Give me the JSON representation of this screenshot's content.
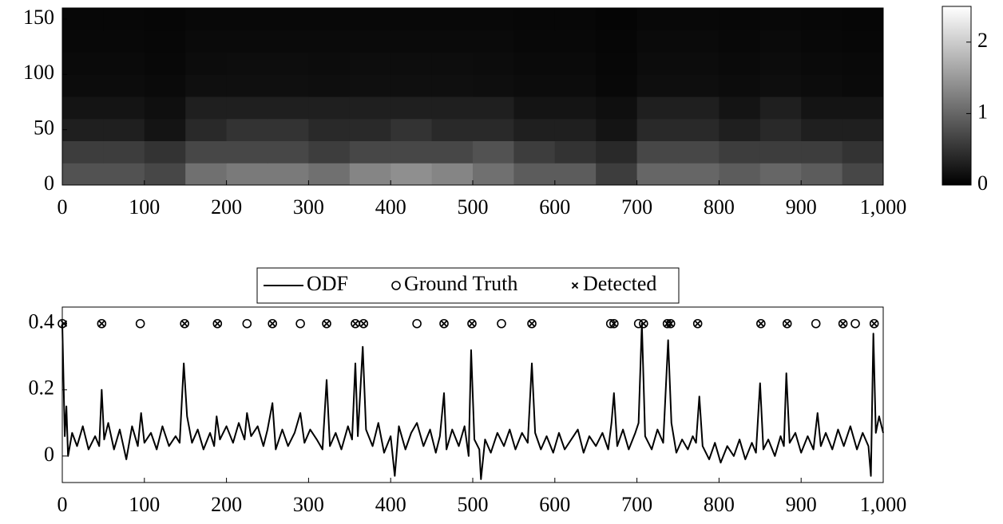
{
  "chart_data": [
    {
      "type": "heatmap",
      "xbins": [
        0,
        50,
        100,
        150,
        200,
        250,
        300,
        350,
        400,
        450,
        500,
        550,
        600,
        650,
        700,
        750,
        800,
        850,
        900,
        950,
        1000
      ],
      "ybins": [
        0,
        20,
        40,
        60,
        80,
        100,
        120,
        140,
        160
      ],
      "values": [
        [
          0.8,
          0.8,
          0.7,
          1.1,
          1.2,
          1.2,
          1.1,
          1.3,
          1.4,
          1.3,
          1.1,
          0.9,
          0.9,
          0.6,
          1.0,
          1.0,
          0.9,
          1.0,
          0.9,
          0.7
        ],
        [
          0.6,
          0.6,
          0.5,
          0.7,
          0.7,
          0.7,
          0.6,
          0.7,
          0.7,
          0.7,
          0.8,
          0.6,
          0.5,
          0.4,
          0.7,
          0.7,
          0.6,
          0.6,
          0.6,
          0.5
        ],
        [
          0.3,
          0.3,
          0.2,
          0.4,
          0.5,
          0.5,
          0.4,
          0.4,
          0.5,
          0.4,
          0.4,
          0.3,
          0.3,
          0.2,
          0.4,
          0.4,
          0.3,
          0.4,
          0.3,
          0.3
        ],
        [
          0.2,
          0.2,
          0.15,
          0.3,
          0.3,
          0.3,
          0.3,
          0.3,
          0.3,
          0.3,
          0.3,
          0.2,
          0.2,
          0.15,
          0.3,
          0.3,
          0.2,
          0.3,
          0.2,
          0.2
        ],
        [
          0.12,
          0.12,
          0.1,
          0.15,
          0.15,
          0.15,
          0.14,
          0.15,
          0.15,
          0.15,
          0.14,
          0.12,
          0.12,
          0.08,
          0.14,
          0.14,
          0.12,
          0.14,
          0.12,
          0.1
        ],
        [
          0.1,
          0.1,
          0.08,
          0.12,
          0.13,
          0.13,
          0.12,
          0.13,
          0.13,
          0.13,
          0.12,
          0.1,
          0.1,
          0.07,
          0.12,
          0.12,
          0.1,
          0.12,
          0.1,
          0.09
        ],
        [
          0.08,
          0.08,
          0.07,
          0.1,
          0.1,
          0.1,
          0.1,
          0.1,
          0.1,
          0.1,
          0.1,
          0.08,
          0.08,
          0.06,
          0.1,
          0.1,
          0.08,
          0.1,
          0.08,
          0.07
        ],
        [
          0.07,
          0.07,
          0.06,
          0.08,
          0.08,
          0.08,
          0.08,
          0.08,
          0.08,
          0.08,
          0.08,
          0.07,
          0.07,
          0.05,
          0.08,
          0.08,
          0.07,
          0.08,
          0.07,
          0.06
        ]
      ],
      "colormap": [
        "#000000",
        "#ffffff"
      ],
      "xlim": [
        0,
        1000
      ],
      "ylim": [
        0,
        160
      ],
      "clim": [
        0,
        2.5
      ],
      "xticks": [
        0,
        100,
        200,
        300,
        400,
        500,
        600,
        700,
        800,
        900,
        {
          "value": 1000,
          "label": "1,000"
        }
      ],
      "yticks": [
        0,
        50,
        100,
        150
      ],
      "cticks": [
        0,
        1,
        2
      ]
    },
    {
      "type": "line",
      "xlim": [
        0,
        1000
      ],
      "ylim": [
        -0.08,
        0.45
      ],
      "xticks": [
        0,
        100,
        200,
        300,
        400,
        500,
        600,
        700,
        800,
        900,
        {
          "value": 1000,
          "label": "1,000"
        }
      ],
      "yticks": [
        0,
        0.2,
        0.4
      ],
      "series": [
        {
          "name": "ODF",
          "color": "#000000",
          "marker": "line",
          "x": [
            0,
            3,
            5,
            7,
            12,
            18,
            25,
            32,
            40,
            45,
            48,
            51,
            56,
            63,
            70,
            78,
            85,
            92,
            96,
            100,
            108,
            115,
            122,
            130,
            138,
            143,
            148,
            152,
            158,
            165,
            172,
            180,
            185,
            188,
            192,
            200,
            208,
            215,
            222,
            225,
            230,
            238,
            245,
            250,
            256,
            260,
            268,
            275,
            283,
            290,
            295,
            302,
            310,
            317,
            322,
            326,
            333,
            340,
            348,
            353,
            357,
            360,
            366,
            370,
            378,
            385,
            392,
            400,
            405,
            410,
            418,
            425,
            432,
            440,
            448,
            455,
            460,
            465,
            468,
            475,
            483,
            490,
            495,
            498,
            502,
            508,
            510,
            515,
            522,
            530,
            538,
            545,
            552,
            560,
            567,
            572,
            576,
            583,
            590,
            598,
            605,
            612,
            620,
            628,
            635,
            642,
            650,
            658,
            665,
            669,
            672,
            676,
            683,
            690,
            698,
            702,
            706,
            710,
            718,
            725,
            732,
            738,
            742,
            748,
            755,
            762,
            768,
            772,
            776,
            780,
            788,
            795,
            802,
            810,
            818,
            825,
            832,
            840,
            845,
            850,
            854,
            860,
            868,
            875,
            879,
            882,
            886,
            893,
            900,
            908,
            915,
            920,
            924,
            930,
            938,
            945,
            952,
            960,
            968,
            975,
            982,
            985,
            988,
            991,
            995,
            1000
          ],
          "values": [
            0.4,
            0.06,
            0.15,
            0.0,
            0.07,
            0.03,
            0.09,
            0.02,
            0.06,
            0.03,
            0.2,
            0.05,
            0.1,
            0.02,
            0.08,
            -0.01,
            0.09,
            0.03,
            0.13,
            0.04,
            0.07,
            0.02,
            0.09,
            0.03,
            0.06,
            0.04,
            0.28,
            0.12,
            0.04,
            0.08,
            0.02,
            0.07,
            0.03,
            0.12,
            0.05,
            0.09,
            0.04,
            0.1,
            0.05,
            0.13,
            0.06,
            0.09,
            0.03,
            0.08,
            0.16,
            0.02,
            0.08,
            0.03,
            0.07,
            0.13,
            0.04,
            0.08,
            0.05,
            0.02,
            0.23,
            0.03,
            0.07,
            0.02,
            0.09,
            0.05,
            0.28,
            0.06,
            0.33,
            0.08,
            0.03,
            0.1,
            0.01,
            0.06,
            -0.06,
            0.09,
            0.02,
            0.07,
            0.1,
            0.03,
            0.08,
            0.01,
            0.06,
            0.19,
            0.02,
            0.08,
            0.03,
            0.09,
            0.0,
            0.32,
            0.05,
            0.02,
            -0.07,
            0.05,
            0.01,
            0.07,
            0.03,
            0.08,
            0.02,
            0.07,
            0.04,
            0.28,
            0.07,
            0.02,
            0.06,
            0.01,
            0.07,
            0.02,
            0.05,
            0.08,
            0.01,
            0.06,
            0.03,
            0.07,
            0.02,
            0.1,
            0.19,
            0.03,
            0.08,
            0.02,
            0.07,
            0.1,
            0.4,
            0.06,
            0.02,
            0.08,
            0.04,
            0.35,
            0.1,
            0.01,
            0.05,
            0.02,
            0.06,
            0.04,
            0.18,
            0.03,
            -0.01,
            0.04,
            -0.02,
            0.03,
            0.0,
            0.05,
            -0.01,
            0.04,
            0.01,
            0.22,
            0.02,
            0.05,
            0.0,
            0.06,
            0.03,
            0.25,
            0.04,
            0.07,
            0.01,
            0.06,
            0.02,
            0.13,
            0.03,
            0.07,
            0.02,
            0.08,
            0.03,
            0.09,
            0.02,
            0.07,
            0.03,
            -0.06,
            0.37,
            0.07,
            0.12,
            0.07
          ]
        },
        {
          "name": "Ground Truth",
          "color": "#000000",
          "marker": "circle",
          "x": [
            0,
            48,
            95,
            149,
            189,
            225,
            256,
            290,
            322,
            357,
            367,
            432,
            465,
            499,
            535,
            572,
            668,
            672,
            702,
            708,
            737,
            741,
            774,
            851,
            883,
            918,
            951,
            966,
            989
          ],
          "values": [
            0.4,
            0.4,
            0.4,
            0.4,
            0.4,
            0.4,
            0.4,
            0.4,
            0.4,
            0.4,
            0.4,
            0.4,
            0.4,
            0.4,
            0.4,
            0.4,
            0.4,
            0.4,
            0.4,
            0.4,
            0.4,
            0.4,
            0.4,
            0.4,
            0.4,
            0.4,
            0.4,
            0.4,
            0.4
          ]
        },
        {
          "name": "Detected",
          "color": "#000000",
          "marker": "x",
          "x": [
            2,
            48,
            149,
            189,
            256,
            322,
            357,
            367,
            465,
            499,
            572,
            672,
            708,
            737,
            741,
            774,
            851,
            883,
            951,
            989
          ],
          "values": [
            0.4,
            0.4,
            0.4,
            0.4,
            0.4,
            0.4,
            0.4,
            0.4,
            0.4,
            0.4,
            0.4,
            0.4,
            0.4,
            0.4,
            0.4,
            0.4,
            0.4,
            0.4,
            0.4,
            0.4
          ]
        }
      ]
    }
  ]
}
